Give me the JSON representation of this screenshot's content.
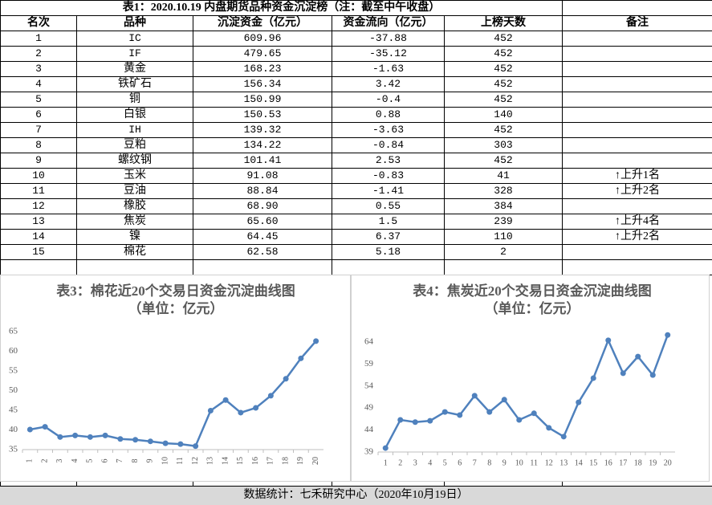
{
  "table": {
    "title": "表1：2020.10.19 内盘期货品种资金沉淀榜（注：截至中午收盘）",
    "header": [
      "名次",
      "品种",
      "沉淀资金（亿元）",
      "资金流向（亿元）",
      "上榜天数",
      "备注"
    ],
    "rows": [
      [
        "1",
        "IC",
        "609.96",
        "-37.88",
        "452",
        null
      ],
      [
        "2",
        "IF",
        "479.65",
        "-35.12",
        "452",
        null
      ],
      [
        "3",
        "黄金",
        "168.23",
        "-1.63",
        "452",
        null
      ],
      [
        "4",
        "铁矿石",
        "156.34",
        "3.42",
        "452",
        null
      ],
      [
        "5",
        "铜",
        "150.99",
        "-0.4",
        "452",
        null
      ],
      [
        "6",
        "白银",
        "150.53",
        "0.88",
        "140",
        null
      ],
      [
        "7",
        "IH",
        "139.32",
        "-3.63",
        "452",
        null
      ],
      [
        "8",
        "豆粕",
        "134.22",
        "-0.84",
        "303",
        null
      ],
      [
        "9",
        "螺纹钢",
        "101.41",
        "2.53",
        "452",
        null
      ],
      [
        "10",
        "玉米",
        "91.08",
        "-0.83",
        "41",
        "↑上升1名"
      ],
      [
        "11",
        "豆油",
        "88.84",
        "-1.41",
        "328",
        "↑上升2名"
      ],
      [
        "12",
        "橡胶",
        "68.90",
        "0.55",
        "384",
        null
      ],
      [
        "13",
        "焦炭",
        "65.60",
        "1.5",
        "239",
        "↑上升4名"
      ],
      [
        "14",
        "镍",
        "64.45",
        "6.37",
        "110",
        "↑上升2名"
      ],
      [
        "15",
        "棉花",
        "62.58",
        "5.18",
        "2",
        null
      ]
    ]
  },
  "chart_data": [
    {
      "type": "line",
      "title": "表3：棉花近20个交易日资金沉淀曲线图",
      "subtitle": "（单位：亿元）",
      "categories": [
        "1",
        "2",
        "3",
        "4",
        "5",
        "6",
        "7",
        "8",
        "9",
        "10",
        "11",
        "12",
        "13",
        "14",
        "15",
        "16",
        "17",
        "18",
        "19",
        "20"
      ],
      "values": [
        40.1,
        40.8,
        38.2,
        38.6,
        38.2,
        38.6,
        37.7,
        37.5,
        37.1,
        36.6,
        36.4,
        35.9,
        44.9,
        47.6,
        44.4,
        45.6,
        48.7,
        53.0,
        58.2,
        62.58
      ],
      "color": "#4f81bd",
      "ylim": [
        35,
        65
      ],
      "yticks": [
        35,
        40,
        45,
        50,
        55,
        60,
        65
      ]
    },
    {
      "type": "line",
      "title": "表4：焦炭近20个交易日资金沉淀曲线图",
      "subtitle": "（单位：亿元）",
      "categories": [
        "1",
        "2",
        "3",
        "4",
        "5",
        "6",
        "7",
        "8",
        "9",
        "10",
        "11",
        "12",
        "13",
        "14",
        "15",
        "16",
        "17",
        "18",
        "19",
        "20"
      ],
      "values": [
        39.9,
        46.3,
        45.8,
        46.1,
        48.1,
        47.4,
        51.8,
        48.1,
        50.9,
        46.3,
        47.8,
        44.5,
        42.5,
        50.3,
        55.8,
        64.4,
        56.9,
        60.7,
        56.5,
        65.6
      ],
      "color": "#4f81bd",
      "ylim": [
        39,
        67
      ],
      "yticks": [
        39,
        44,
        49,
        54,
        59,
        64
      ]
    }
  ],
  "footer": "数据统计：七禾研究中心（2020年10月19日）"
}
